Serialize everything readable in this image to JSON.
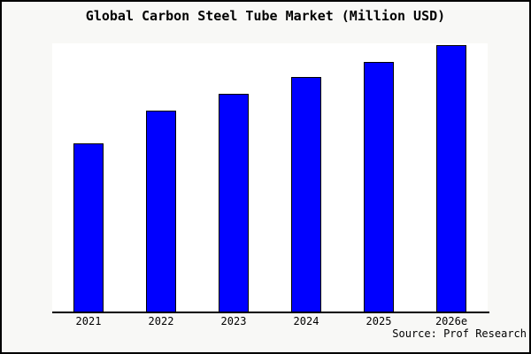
{
  "title": "Global Carbon Steel Tube Market (Million USD)",
  "source_note": "Source: Prof Research",
  "colors": {
    "bar_fill": "#0000FF",
    "bar_border": "#000000",
    "page_background": "#F8F8F6",
    "plot_background": "#FFFFFF",
    "axis_line": "#000000",
    "text": "#000000",
    "frame_border": "#000000"
  },
  "chart_data": {
    "type": "bar",
    "title": "Global Carbon Steel Tube Market (Million USD)",
    "categories": [
      "2021",
      "2022",
      "2023",
      "2024",
      "2025",
      "2026e"
    ],
    "values": [
      63.1,
      75.4,
      81.7,
      88.0,
      93.7,
      100
    ],
    "units": "relative index estimated from bar heights; no y-axis tick labels or data labels are shown (2026e = 100)",
    "xlabel": "",
    "ylabel": "",
    "ylim": [
      0,
      100.7
    ],
    "grid": false,
    "legend_position": "none",
    "bar_orientation": "vertical",
    "annotations": [
      "Source: Prof Research"
    ]
  }
}
